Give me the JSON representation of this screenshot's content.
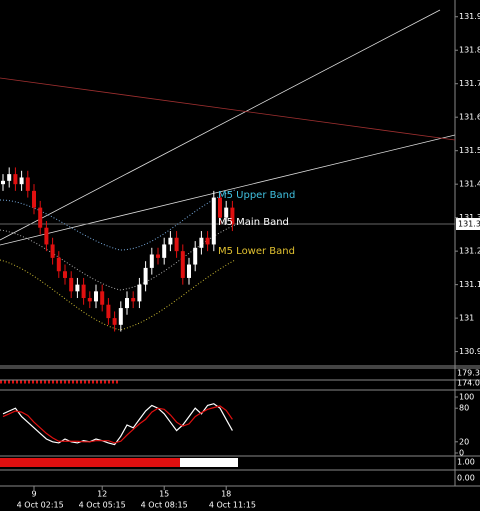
{
  "chart_data": {
    "type": "candlestick",
    "ylim": [
      130.86,
      131.95
    ],
    "yticks": [
      130.9,
      131.0,
      131.1,
      131.2,
      131.3,
      131.4,
      131.5,
      131.6,
      131.7,
      131.8,
      131.9
    ],
    "last_price_label": "131.3",
    "up_color": "#ffffff",
    "down_color": "#e01010",
    "categories": [
      null,
      null,
      null,
      null,
      null,
      "9",
      null,
      null,
      null,
      null,
      null,
      null,
      null,
      null,
      null,
      null,
      "12",
      null,
      null,
      null,
      null,
      null,
      null,
      null,
      null,
      null,
      "15",
      null,
      null,
      null,
      null,
      null,
      null,
      null,
      null,
      null,
      "18",
      null
    ],
    "time_labels": [
      null,
      null,
      null,
      null,
      null,
      null,
      "4 Oct 02:15",
      null,
      null,
      null,
      null,
      null,
      null,
      null,
      null,
      null,
      "4 Oct 05:15",
      null,
      null,
      null,
      null,
      null,
      null,
      null,
      null,
      null,
      "4 Oct 08:15",
      null,
      null,
      null,
      null,
      null,
      null,
      null,
      null,
      null,
      null,
      "4 Oct 11:15"
    ],
    "open": [
      131.4,
      131.41,
      131.43,
      131.4,
      131.42,
      131.38,
      131.33,
      131.27,
      131.22,
      131.18,
      131.14,
      131.12,
      131.08,
      131.1,
      131.06,
      131.05,
      131.08,
      131.04,
      131.0,
      130.98,
      131.03,
      131.06,
      131.05,
      131.1,
      131.15,
      131.19,
      131.18,
      131.22,
      131.24,
      131.2,
      131.12,
      131.16,
      131.21,
      131.24,
      131.22,
      131.36,
      131.3,
      131.33
    ],
    "high": [
      131.43,
      131.45,
      131.45,
      131.44,
      131.44,
      131.4,
      131.35,
      131.29,
      131.24,
      131.2,
      131.16,
      131.14,
      131.12,
      131.12,
      131.08,
      131.1,
      131.1,
      131.06,
      131.02,
      131.05,
      131.08,
      131.08,
      131.12,
      131.17,
      131.21,
      131.21,
      131.24,
      131.26,
      131.26,
      131.22,
      131.18,
      131.23,
      131.26,
      131.26,
      131.38,
      131.38,
      131.35,
      131.35
    ],
    "low": [
      131.38,
      131.39,
      131.38,
      131.38,
      131.36,
      131.31,
      131.25,
      131.2,
      131.16,
      131.12,
      131.1,
      131.06,
      131.06,
      131.04,
      131.03,
      131.03,
      131.02,
      130.98,
      130.96,
      130.96,
      131.01,
      131.03,
      131.03,
      131.08,
      131.13,
      131.16,
      131.16,
      131.2,
      131.18,
      131.1,
      131.1,
      131.14,
      131.19,
      131.2,
      131.2,
      131.28,
      131.28,
      131.26
    ],
    "close": [
      131.41,
      131.43,
      131.4,
      131.42,
      131.38,
      131.33,
      131.27,
      131.22,
      131.18,
      131.14,
      131.12,
      131.08,
      131.1,
      131.06,
      131.05,
      131.08,
      131.04,
      131.0,
      130.98,
      131.03,
      131.06,
      131.05,
      131.1,
      131.15,
      131.19,
      131.18,
      131.22,
      131.24,
      131.2,
      131.12,
      131.16,
      131.21,
      131.24,
      131.22,
      131.36,
      131.3,
      131.33,
      131.28
    ],
    "band_labels": [
      {
        "text": "M5 Upper Band",
        "color": "#40c0e0"
      },
      {
        "text": "M5 Main Band",
        "color": "#ffffff"
      },
      {
        "text": "M5 Lower Band",
        "color": "#e0c030"
      }
    ],
    "stochastic": {
      "ylim": [
        0,
        100
      ],
      "yticks": [
        100,
        80,
        20,
        0
      ],
      "series": [
        {
          "color": "#ffffff",
          "values": [
            70,
            75,
            80,
            65,
            55,
            45,
            35,
            25,
            20,
            18,
            25,
            20,
            18,
            22,
            20,
            25,
            22,
            18,
            15,
            30,
            50,
            45,
            60,
            75,
            85,
            80,
            70,
            55,
            40,
            50,
            65,
            80,
            70,
            85,
            88,
            80,
            60,
            40
          ]
        },
        {
          "color": "#e01010",
          "values": [
            65,
            70,
            75,
            73,
            67,
            55,
            45,
            35,
            27,
            21,
            21,
            21,
            21,
            20,
            20,
            22,
            22,
            22,
            18,
            21,
            32,
            42,
            52,
            60,
            73,
            80,
            78,
            68,
            55,
            48,
            52,
            65,
            72,
            78,
            81,
            84,
            76,
            60
          ]
        }
      ]
    },
    "panel_labels": [
      "179.34",
      "174.0",
      "1.00",
      "0.00"
    ]
  }
}
